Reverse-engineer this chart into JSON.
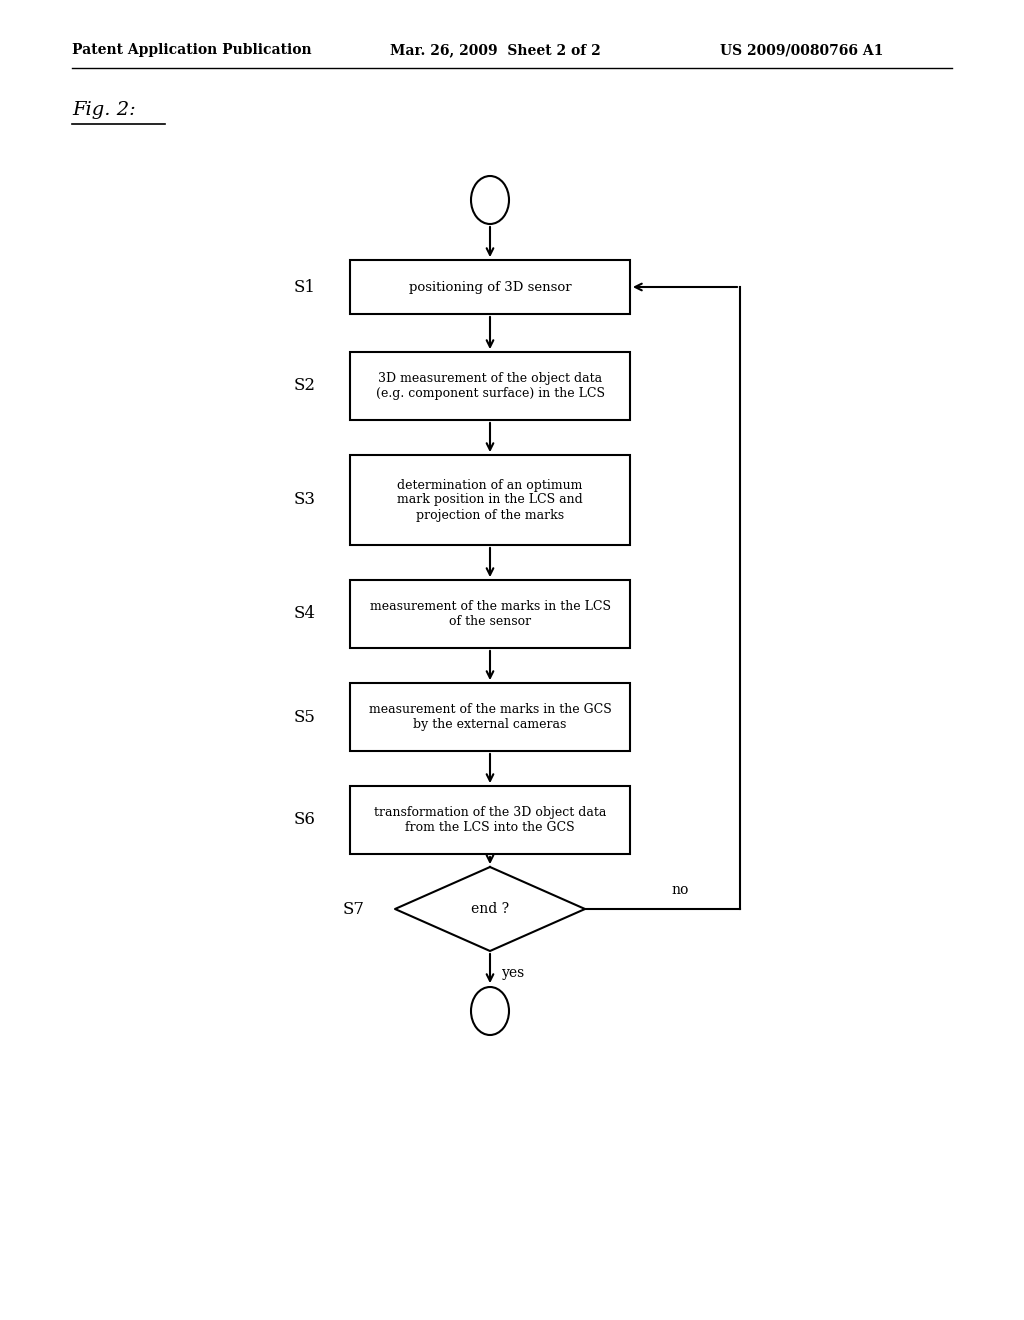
{
  "header_left": "Patent Application Publication",
  "header_mid": "Mar. 26, 2009  Sheet 2 of 2",
  "header_right": "US 2009/0080766 A1",
  "fig_label": "Fig. 2:",
  "background_color": "#ffffff",
  "steps": [
    {
      "id": "S1",
      "lines": [
        "positioning of 3D sensor"
      ]
    },
    {
      "id": "S2",
      "lines": [
        "3D measurement of the object data",
        "(e.g. component surface) in the LCS"
      ]
    },
    {
      "id": "S3",
      "lines": [
        "determination of an optimum",
        "mark position in the LCS and",
        "projection of the marks"
      ]
    },
    {
      "id": "S4",
      "lines": [
        "measurement of the marks in the LCS",
        "of the sensor"
      ]
    },
    {
      "id": "S5",
      "lines": [
        "measurement of the marks in the GCS",
        "by the external cameras"
      ]
    },
    {
      "id": "S6",
      "lines": [
        "transformation of the 3D object data",
        "from the LCS into the GCS"
      ]
    }
  ],
  "diamond_label": "end ?",
  "diamond_id": "S7",
  "no_label": "no",
  "yes_label": "yes"
}
